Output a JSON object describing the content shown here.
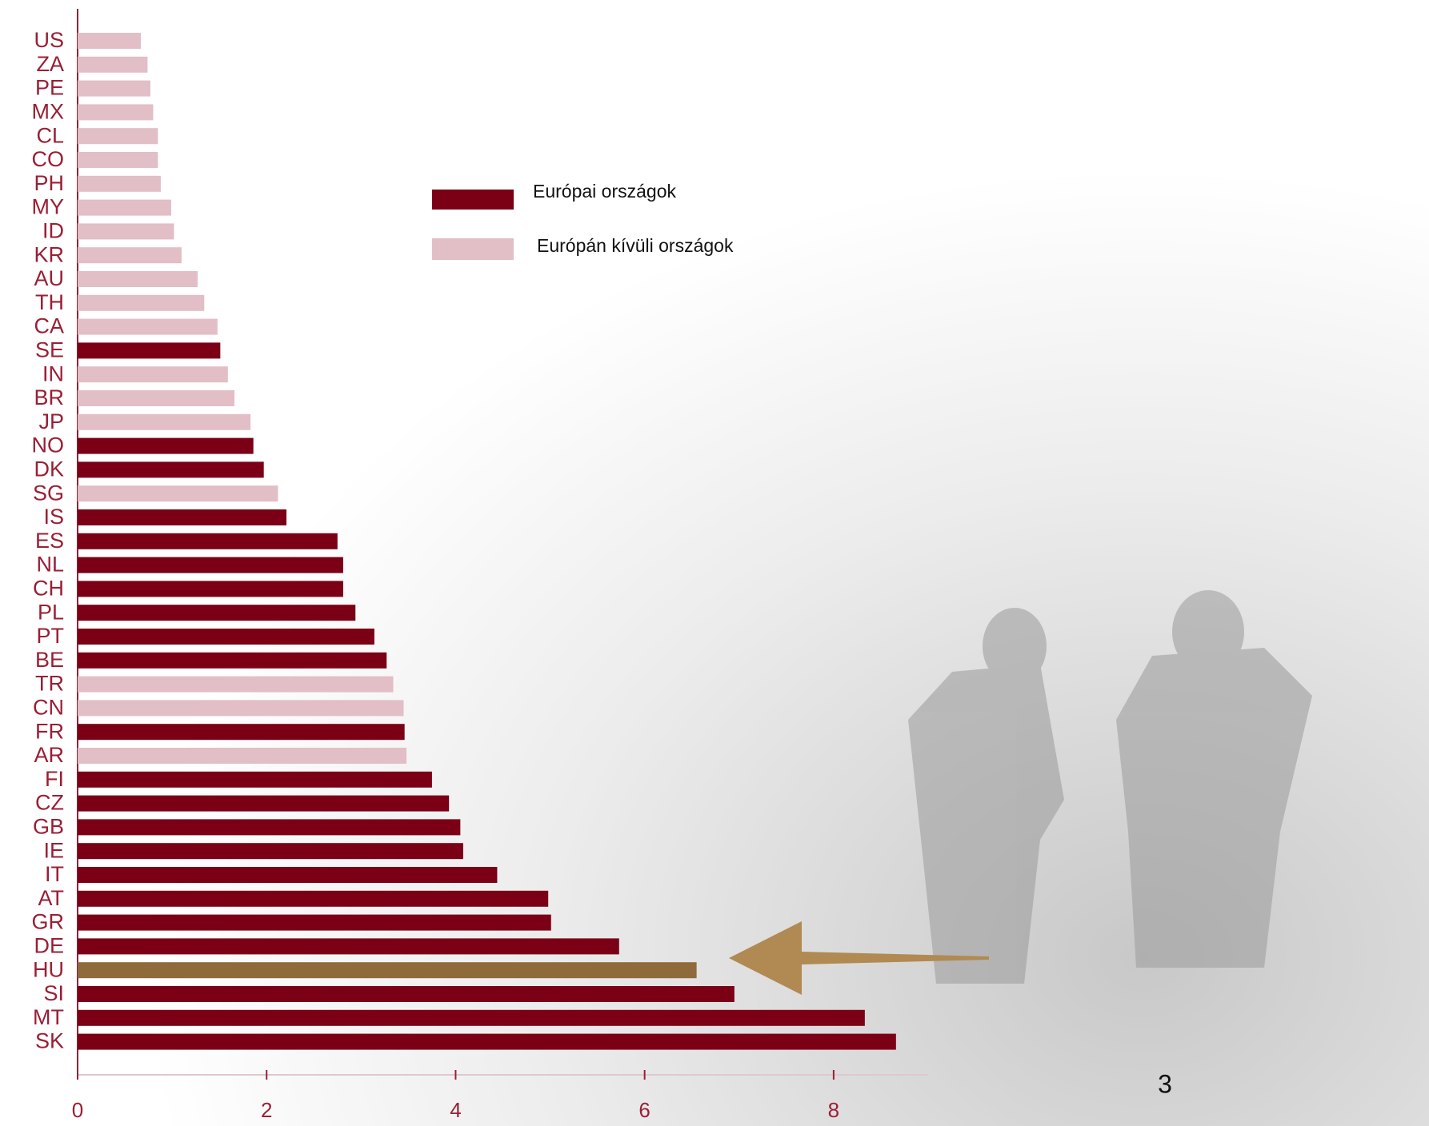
{
  "chart_data": {
    "type": "barh",
    "categories": [
      "US",
      "ZA",
      "PE",
      "MX",
      "CL",
      "CO",
      "PH",
      "MY",
      "ID",
      "KR",
      "AU",
      "TH",
      "CA",
      "SE",
      "IN",
      "BR",
      "JP",
      "NO",
      "DK",
      "SG",
      "IS",
      "ES",
      "NL",
      "CH",
      "PL",
      "PT",
      "BE",
      "TR",
      "CN",
      "FR",
      "AR",
      "FI",
      "CZ",
      "GB",
      "IE",
      "IT",
      "AT",
      "GR",
      "DE",
      "HU",
      "SI",
      "MT",
      "SK"
    ],
    "series": [
      {
        "name": "Európai országok",
        "color": "#7b0016",
        "values": [
          null,
          null,
          null,
          null,
          null,
          null,
          null,
          null,
          null,
          null,
          null,
          null,
          null,
          1.51,
          null,
          null,
          null,
          1.86,
          1.97,
          null,
          2.21,
          2.75,
          2.81,
          2.81,
          2.94,
          3.14,
          3.27,
          null,
          null,
          3.46,
          null,
          3.75,
          3.93,
          4.05,
          4.08,
          4.44,
          4.98,
          5.01,
          5.73,
          6.55,
          6.95,
          8.33,
          8.66
        ]
      },
      {
        "name": "Európán kívüli országok",
        "color": "#e2bec6",
        "values": [
          0.67,
          0.74,
          0.77,
          0.8,
          0.85,
          0.85,
          0.88,
          0.99,
          1.02,
          1.1,
          1.27,
          1.34,
          1.48,
          null,
          1.59,
          1.66,
          1.83,
          null,
          null,
          2.12,
          null,
          null,
          null,
          null,
          null,
          null,
          null,
          3.34,
          3.45,
          null,
          3.48,
          null,
          null,
          null,
          null,
          null,
          null,
          null,
          null,
          null,
          null,
          null,
          null
        ]
      }
    ],
    "highlight_index": 39,
    "highlight_color": "#8f6a3a",
    "xlim": [
      0,
      9
    ],
    "xticks": [
      0,
      2,
      4,
      6,
      8
    ]
  },
  "page_number": "3"
}
